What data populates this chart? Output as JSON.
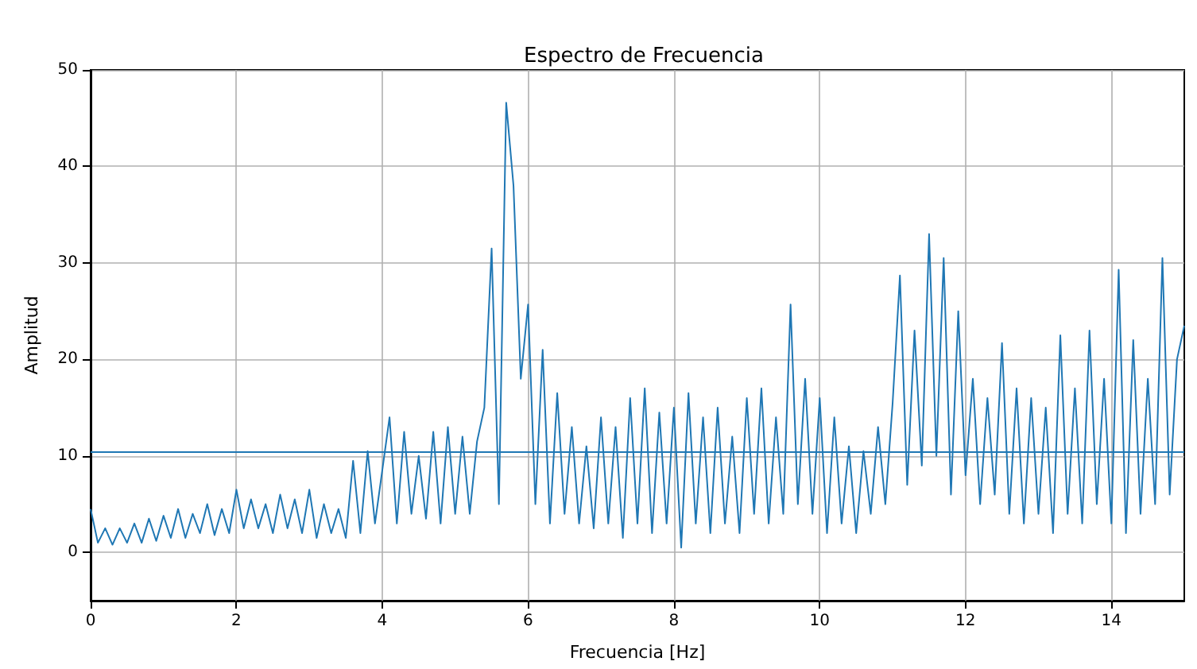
{
  "chart_data": {
    "type": "line",
    "title": "Espectro de Frecuencia",
    "xlabel": "Frecuencia [Hz]",
    "ylabel": "Amplitud",
    "x": [
      0,
      0.1,
      0.2,
      0.3,
      0.4,
      0.5,
      0.6,
      0.7,
      0.8,
      0.9,
      1,
      1.1,
      1.2,
      1.3,
      1.4,
      1.5,
      1.6,
      1.7,
      1.8,
      1.9,
      2,
      2.1,
      2.2,
      2.3,
      2.4,
      2.5,
      2.6,
      2.7,
      2.8,
      2.9,
      3,
      3.1,
      3.2,
      3.3,
      3.4,
      3.5,
      3.6,
      3.7,
      3.8,
      3.9,
      4,
      4.1,
      4.2,
      4.3,
      4.4,
      4.5,
      4.6,
      4.7,
      4.8,
      4.9,
      5,
      5.1,
      5.2,
      5.3,
      5.4,
      5.5,
      5.6,
      5.7,
      5.8,
      5.9,
      6,
      6.1,
      6.2,
      6.3,
      6.4,
      6.5,
      6.6,
      6.7,
      6.8,
      6.9,
      7,
      7.1,
      7.2,
      7.3,
      7.4,
      7.5,
      7.6,
      7.7,
      7.8,
      7.9,
      8,
      8.1,
      8.2,
      8.3,
      8.4,
      8.5,
      8.6,
      8.7,
      8.8,
      8.9,
      9,
      9.1,
      9.2,
      9.3,
      9.4,
      9.5,
      9.6,
      9.7,
      9.8,
      9.9,
      10,
      10.1,
      10.2,
      10.3,
      10.4,
      10.5,
      10.6,
      10.7,
      10.8,
      10.9,
      11,
      11.1,
      11.2,
      11.3,
      11.4,
      11.5,
      11.6,
      11.7,
      11.8,
      11.9,
      12,
      12.1,
      12.2,
      12.3,
      12.4,
      12.5,
      12.6,
      12.7,
      12.8,
      12.9,
      13,
      13.1,
      13.2,
      13.3,
      13.4,
      13.5,
      13.6,
      13.7,
      13.8,
      13.9,
      14,
      14.1,
      14.2,
      14.3,
      14.4,
      14.5,
      14.6,
      14.7,
      14.8,
      14.9,
      15
    ],
    "series": [
      {
        "color": "#1f77b4",
        "values": [
          4.5,
          1,
          2.5,
          0.8,
          2.5,
          1,
          3,
          1,
          3.5,
          1.2,
          3.8,
          1.5,
          4.5,
          1.5,
          4,
          2,
          5,
          1.8,
          4.5,
          2,
          6.5,
          2.5,
          5.5,
          2.5,
          5,
          2,
          6,
          2.5,
          5.5,
          2,
          6.5,
          1.5,
          5,
          2,
          4.5,
          1.5,
          9.5,
          2,
          10.5,
          3,
          8.5,
          14,
          3,
          12.5,
          4,
          10,
          3.5,
          12.5,
          3,
          13,
          4,
          12,
          4,
          11.5,
          15,
          31.5,
          5,
          46.6,
          38,
          18,
          25.7,
          5,
          21,
          3,
          16.5,
          4,
          13,
          3,
          11,
          2.5,
          14,
          3,
          13,
          1.5,
          16,
          3,
          17,
          2,
          14.5,
          3,
          15,
          0.5,
          16.5,
          3,
          14,
          2,
          15,
          3,
          12,
          2,
          16,
          4,
          17,
          3,
          14,
          4,
          25.7,
          5,
          18,
          4,
          16,
          2,
          14,
          3,
          11,
          2,
          10.5,
          4,
          13,
          5,
          15.5,
          28.7,
          7,
          23,
          9,
          33,
          10,
          30.5,
          6,
          25,
          8,
          18,
          5,
          16,
          6,
          21.7,
          4,
          17,
          3,
          16,
          4,
          15,
          2,
          22.5,
          4,
          17,
          3,
          23,
          5,
          18,
          3,
          29.3,
          2,
          22,
          4,
          18,
          5,
          30.5,
          6,
          20,
          23.5
        ]
      }
    ],
    "xlim": [
      0,
      15
    ],
    "xticks": [
      0,
      2,
      4,
      6,
      8,
      10,
      12,
      14
    ],
    "ylim": [
      -5,
      50
    ],
    "yticks": [
      0,
      10,
      20,
      30,
      40,
      50
    ],
    "ref_lines": [
      {
        "axis": "y",
        "value": 10.5,
        "color": "#1f77b4"
      }
    ],
    "grid": true
  }
}
